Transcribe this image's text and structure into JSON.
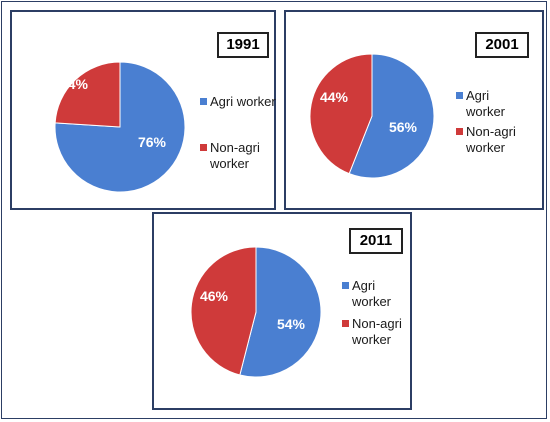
{
  "colors": {
    "agri": "#4a7fd1",
    "non_agri": "#cf3a3a"
  },
  "chart_data": [
    {
      "type": "pie",
      "title": "1991",
      "legend": [
        "Agri worker",
        "Non-agri worker"
      ],
      "slices": [
        {
          "label": "Agri worker",
          "value": 76,
          "text": "76%"
        },
        {
          "label": "Non-agri worker",
          "value": 24,
          "text": "24%"
        }
      ]
    },
    {
      "type": "pie",
      "title": "2001",
      "legend": [
        "Agri worker",
        "Non-agri worker"
      ],
      "slices": [
        {
          "label": "Agri worker",
          "value": 56,
          "text": "56%"
        },
        {
          "label": "Non-agri worker",
          "value": 44,
          "text": "44%"
        }
      ]
    },
    {
      "type": "pie",
      "title": "2011",
      "legend": [
        "Agri worker",
        "Non-agri worker"
      ],
      "slices": [
        {
          "label": "Agri worker",
          "value": 54,
          "text": "54%"
        },
        {
          "label": "Non-agri worker",
          "value": 46,
          "text": "46%"
        }
      ]
    }
  ]
}
